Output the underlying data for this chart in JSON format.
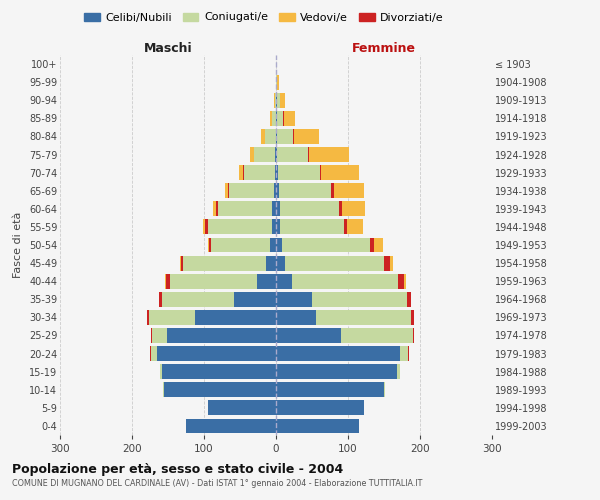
{
  "age_groups": [
    "0-4",
    "5-9",
    "10-14",
    "15-19",
    "20-24",
    "25-29",
    "30-34",
    "35-39",
    "40-44",
    "45-49",
    "50-54",
    "55-59",
    "60-64",
    "65-69",
    "70-74",
    "75-79",
    "80-84",
    "85-89",
    "90-94",
    "95-99",
    "100+"
  ],
  "birth_years": [
    "1999-2003",
    "1994-1998",
    "1989-1993",
    "1984-1988",
    "1979-1983",
    "1974-1978",
    "1969-1973",
    "1964-1968",
    "1959-1963",
    "1954-1958",
    "1949-1953",
    "1944-1948",
    "1939-1943",
    "1934-1938",
    "1929-1933",
    "1924-1928",
    "1919-1923",
    "1914-1918",
    "1909-1913",
    "1904-1908",
    "≤ 1903"
  ],
  "colors": {
    "celibi": "#3a6ea5",
    "coniugati": "#c5d9a0",
    "vedovi": "#f5b942",
    "divorziati": "#cc2222"
  },
  "maschi": {
    "celibi": [
      125,
      95,
      155,
      158,
      165,
      152,
      112,
      58,
      27,
      14,
      8,
      6,
      5,
      3,
      2,
      2,
      0,
      0,
      0,
      0,
      0
    ],
    "coniugati": [
      0,
      0,
      2,
      3,
      9,
      20,
      65,
      100,
      120,
      115,
      82,
      88,
      75,
      62,
      42,
      28,
      15,
      5,
      2,
      0,
      0
    ],
    "vedovi": [
      0,
      0,
      0,
      0,
      0,
      0,
      0,
      0,
      1,
      2,
      2,
      3,
      3,
      5,
      6,
      6,
      6,
      3,
      1,
      0,
      0
    ],
    "divorziati": [
      0,
      0,
      0,
      0,
      1,
      2,
      2,
      4,
      6,
      3,
      3,
      5,
      4,
      1,
      2,
      0,
      0,
      0,
      0,
      0,
      0
    ]
  },
  "femmine": {
    "celibi": [
      115,
      122,
      150,
      168,
      172,
      90,
      55,
      50,
      22,
      12,
      8,
      6,
      5,
      4,
      3,
      2,
      2,
      2,
      1,
      0,
      0
    ],
    "coniugati": [
      0,
      0,
      2,
      4,
      12,
      100,
      132,
      132,
      148,
      138,
      122,
      88,
      82,
      72,
      58,
      42,
      22,
      8,
      4,
      2,
      0
    ],
    "vedovi": [
      0,
      0,
      0,
      0,
      0,
      0,
      0,
      1,
      3,
      5,
      12,
      22,
      32,
      42,
      52,
      55,
      35,
      15,
      8,
      2,
      0
    ],
    "divorziati": [
      0,
      0,
      0,
      0,
      1,
      2,
      5,
      5,
      8,
      8,
      6,
      5,
      5,
      4,
      2,
      2,
      1,
      1,
      0,
      0,
      0
    ]
  },
  "xlim": 300,
  "title": "Popolazione per età, sesso e stato civile - 2004",
  "subtitle": "COMUNE DI MUGNANO DEL CARDINALE (AV) - Dati ISTAT 1° gennaio 2004 - Elaborazione TUTTITALIA.IT",
  "xlabel_left": "Maschi",
  "xlabel_right": "Femmine",
  "ylabel_left": "Fasce di età",
  "legend_labels": [
    "Celibi/Nubili",
    "Coniugati/e",
    "Vedovi/e",
    "Divorziati/e"
  ],
  "bg_color": "#f5f5f5",
  "grid_color": "#cccccc"
}
